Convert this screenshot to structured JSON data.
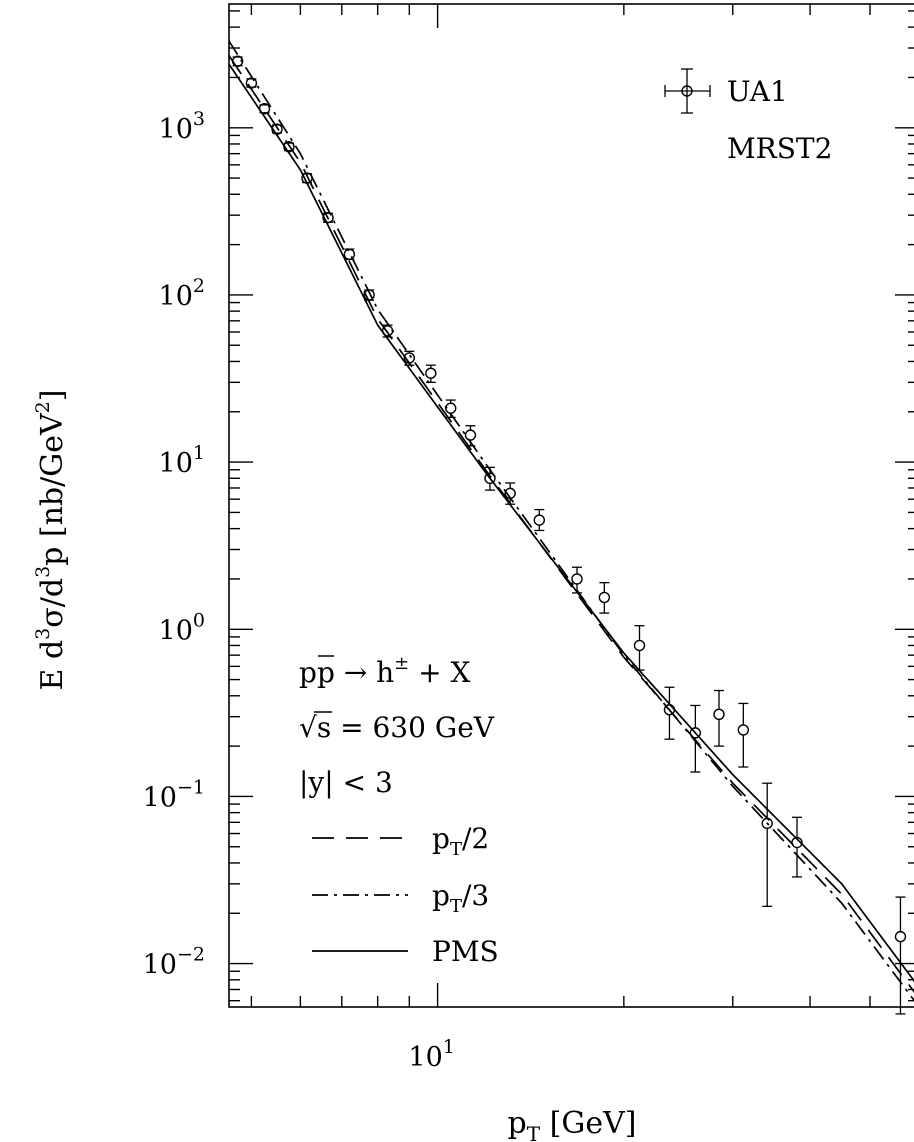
{
  "chart_data": {
    "type": "scatter",
    "x_axis": {
      "label": "p",
      "label_sub": "T",
      "label_unit": " [GeV]",
      "scale": "log",
      "range": [
        4.6,
        60
      ],
      "ticks": [
        {
          "value": 10,
          "base": "10",
          "exp": "1"
        }
      ]
    },
    "y_axis": {
      "label": "E d",
      "label_parts": [
        "E d",
        "3",
        "σ/d",
        "3",
        "p [nb/GeV",
        "2",
        "]"
      ],
      "scale": "log",
      "range": [
        0.0055,
        5500
      ],
      "ticks": [
        {
          "value": 1000,
          "base": "10",
          "exp": "3"
        },
        {
          "value": 100,
          "base": "10",
          "exp": "2"
        },
        {
          "value": 10,
          "base": "10",
          "exp": "1"
        },
        {
          "value": 1,
          "base": "10",
          "exp": "0"
        },
        {
          "value": 0.1,
          "base": "10",
          "exp": "−1"
        },
        {
          "value": 0.01,
          "base": "10",
          "exp": "−2"
        }
      ]
    },
    "annotations": {
      "data_legend": "UA1",
      "pdf": "MRST2",
      "process": {
        "lhs": "p",
        "lhs_bar": "p",
        "arrow": " → h",
        "sup": "±",
        "rhs": " + X"
      },
      "energy": {
        "sqrt": "√",
        "s": "s",
        "rest": " = 630 GeV"
      },
      "rapidity": "|y| < 3"
    },
    "legend": [
      {
        "name": "p",
        "sub": "T",
        "rest": "/2",
        "style": "dashed"
      },
      {
        "name": "p",
        "sub": "T",
        "rest": "/3",
        "style": "dash-dot"
      },
      {
        "name": "PMS",
        "sub": "",
        "rest": "",
        "style": "solid"
      }
    ],
    "series": [
      {
        "name": "UA1",
        "style": "points",
        "points": [
          {
            "x": 4.75,
            "y": 2500,
            "err": [
              2350,
              2650
            ]
          },
          {
            "x": 5.0,
            "y": 1850,
            "err": [
              1750,
              1960
            ]
          },
          {
            "x": 5.25,
            "y": 1300,
            "err": [
              1230,
              1370
            ]
          },
          {
            "x": 5.5,
            "y": 980,
            "err": [
              930,
              1040
            ]
          },
          {
            "x": 5.75,
            "y": 770,
            "err": [
              730,
              810
            ]
          },
          {
            "x": 6.15,
            "y": 500,
            "err": [
              470,
              530
            ]
          },
          {
            "x": 6.65,
            "y": 290,
            "err": [
              272,
              308
            ]
          },
          {
            "x": 7.2,
            "y": 175,
            "err": [
              163,
              188
            ]
          },
          {
            "x": 7.75,
            "y": 100,
            "err": [
              93,
              107
            ]
          },
          {
            "x": 8.3,
            "y": 61,
            "err": [
              56,
              66
            ]
          },
          {
            "x": 9.0,
            "y": 42,
            "err": [
              38,
              46
            ]
          },
          {
            "x": 9.75,
            "y": 34,
            "err": [
              30,
              38
            ]
          },
          {
            "x": 10.5,
            "y": 21,
            "err": [
              18.5,
              23.5
            ]
          },
          {
            "x": 11.3,
            "y": 14.5,
            "err": [
              12.5,
              16.5
            ]
          },
          {
            "x": 12.15,
            "y": 8.0,
            "err": [
              6.8,
              9.3
            ]
          },
          {
            "x": 13.1,
            "y": 6.5,
            "err": [
              5.6,
              7.5
            ]
          },
          {
            "x": 14.6,
            "y": 4.5,
            "err": [
              3.9,
              5.2
            ]
          },
          {
            "x": 16.8,
            "y": 2.0,
            "err": [
              1.65,
              2.35
            ]
          },
          {
            "x": 18.6,
            "y": 1.55,
            "err": [
              1.25,
              1.9
            ]
          },
          {
            "x": 21.2,
            "y": 0.8,
            "err": [
              0.57,
              1.05
            ]
          },
          {
            "x": 23.7,
            "y": 0.33,
            "err": [
              0.22,
              0.45
            ]
          },
          {
            "x": 26.1,
            "y": 0.24,
            "err": [
              0.14,
              0.35
            ]
          },
          {
            "x": 28.5,
            "y": 0.31,
            "err": [
              0.2,
              0.43
            ]
          },
          {
            "x": 31.2,
            "y": 0.25,
            "err": [
              0.15,
              0.36
            ]
          },
          {
            "x": 34.1,
            "y": 0.069,
            "err": [
              0.022,
              0.12
            ]
          },
          {
            "x": 38.1,
            "y": 0.053,
            "err": [
              0.033,
              0.075
            ]
          },
          {
            "x": 56.0,
            "y": 0.0145,
            "err": [
              0.005,
              0.025
            ]
          }
        ]
      },
      {
        "name": "p_T/2",
        "style": "dashed",
        "points": [
          [
            4.6,
            2700
          ],
          [
            6.0,
            620
          ],
          [
            8.0,
            72
          ],
          [
            12.0,
            8.8
          ],
          [
            20.0,
            0.68
          ],
          [
            30.0,
            0.12
          ],
          [
            45.0,
            0.026
          ],
          [
            60.0,
            0.0062
          ]
        ]
      },
      {
        "name": "p_T/3",
        "style": "dash-dot",
        "points": [
          [
            4.6,
            3300
          ],
          [
            6.0,
            700
          ],
          [
            8.0,
            82
          ],
          [
            12.0,
            9.6
          ],
          [
            20.0,
            0.7
          ],
          [
            30.0,
            0.115
          ],
          [
            45.0,
            0.023
          ],
          [
            60.0,
            0.0055
          ]
        ]
      },
      {
        "name": "PMS",
        "style": "solid",
        "points": [
          [
            4.6,
            2400
          ],
          [
            6.0,
            560
          ],
          [
            8.0,
            66
          ],
          [
            12.0,
            8.5
          ],
          [
            20.0,
            0.72
          ],
          [
            30.0,
            0.135
          ],
          [
            45.0,
            0.03
          ],
          [
            60.0,
            0.0072
          ]
        ]
      }
    ]
  }
}
